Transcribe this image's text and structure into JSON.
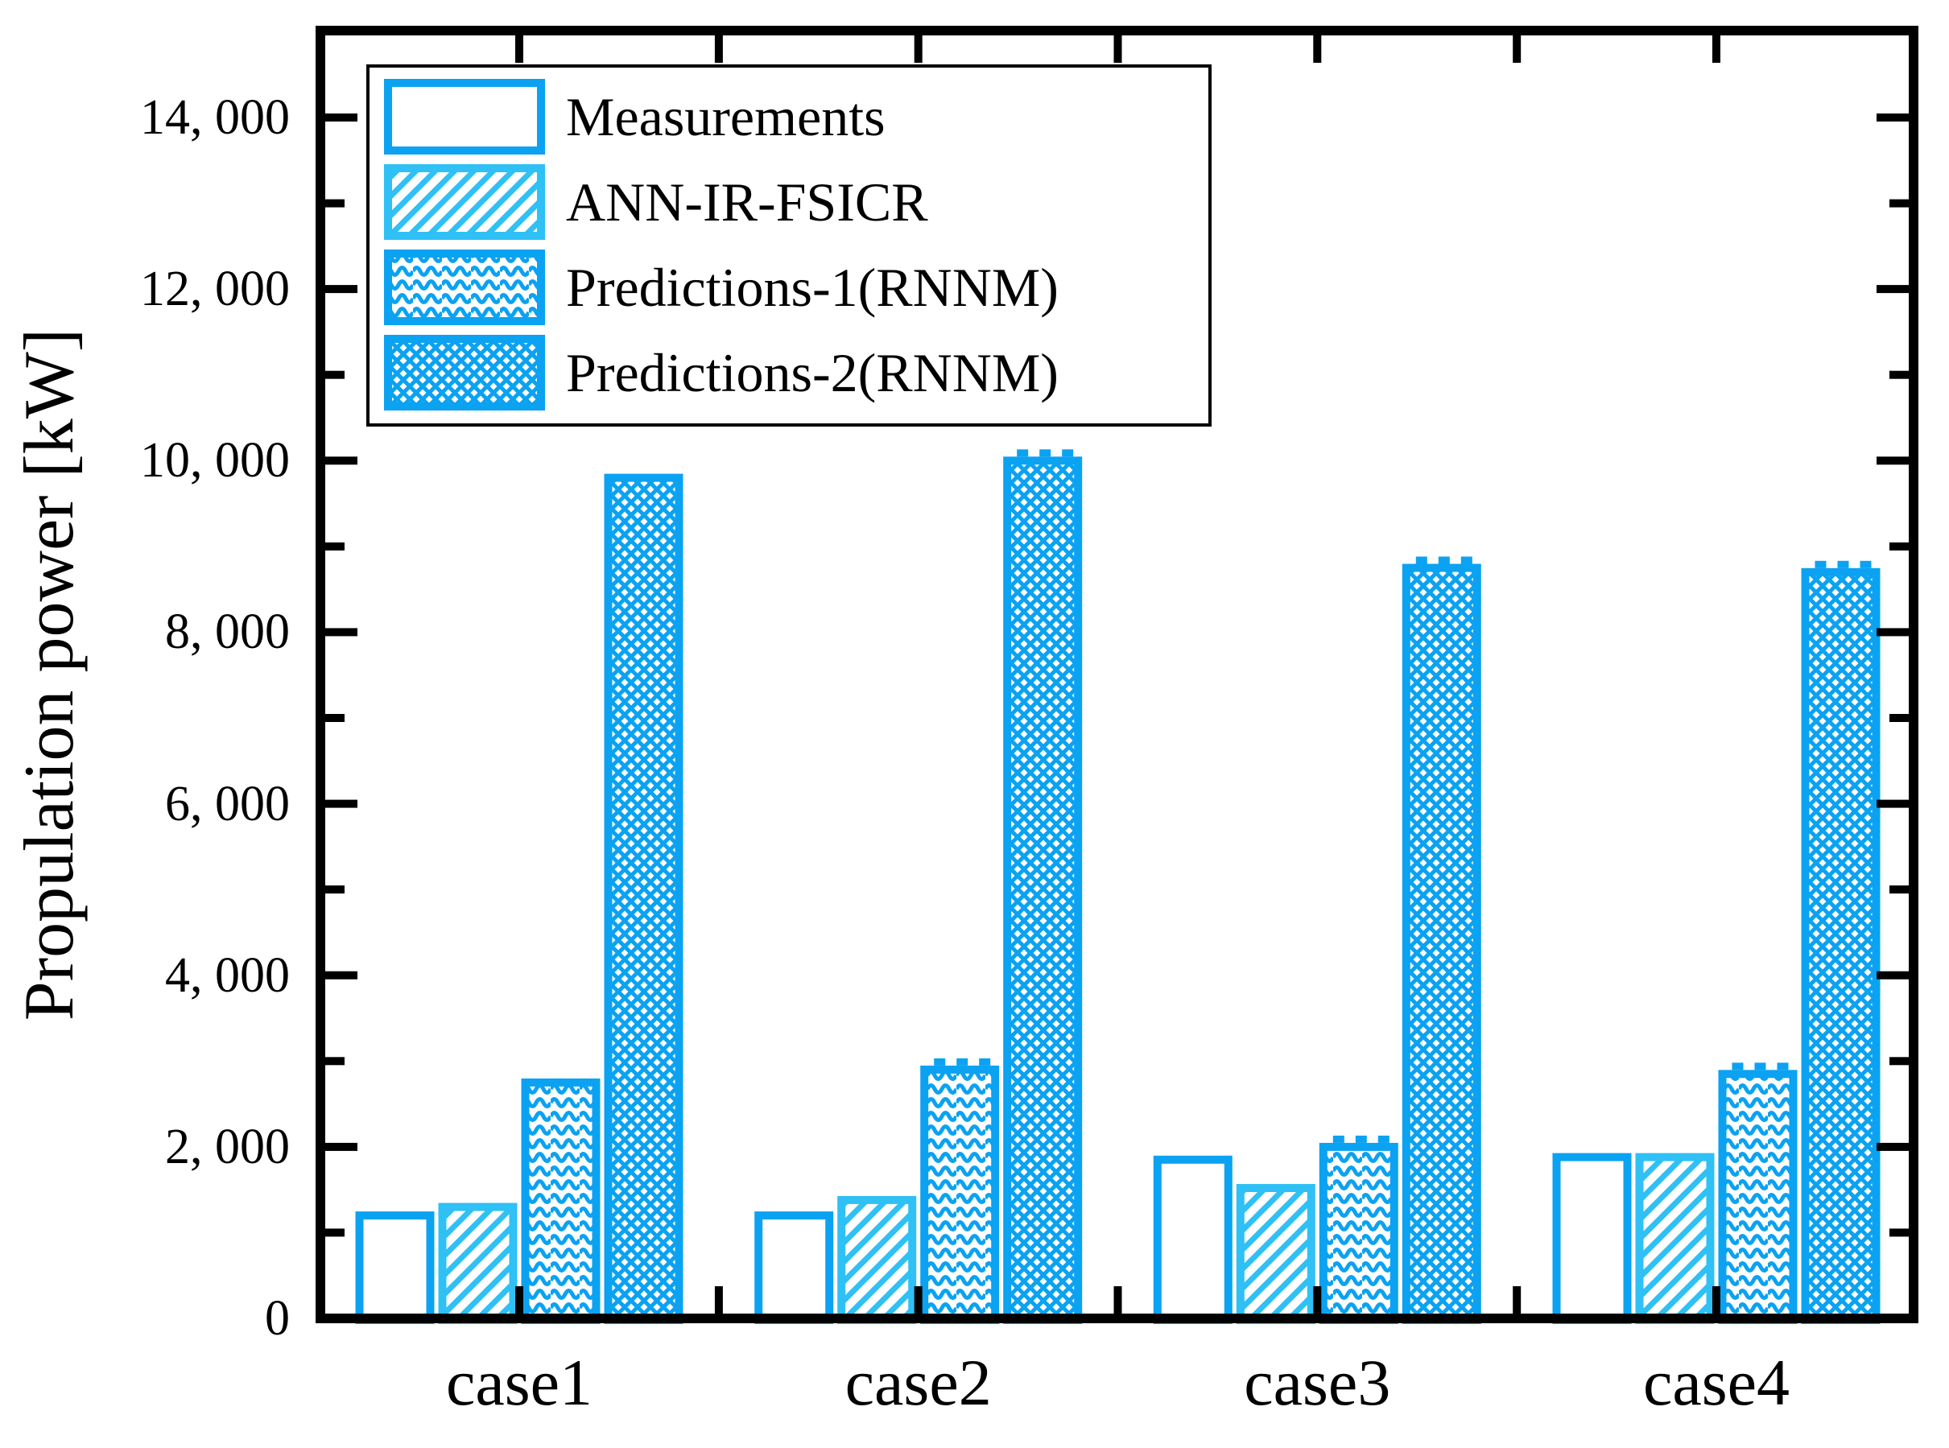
{
  "figure": {
    "background": "#ffffff",
    "colors": {
      "deep_blue": "#0ba2f2",
      "light_blue": "#2fc0f5",
      "axis_black": "#000000"
    }
  },
  "chart_data": {
    "type": "bar",
    "title": "",
    "xlabel": "",
    "ylabel": "Propulation power [kW]",
    "categories": [
      "case1",
      "case2",
      "case3",
      "case4"
    ],
    "series": [
      {
        "name": "Measurements",
        "pattern": "plain",
        "color": "deep_blue",
        "values": [
          1200,
          1200,
          1850,
          1880
        ],
        "error_caps": [
          false,
          false,
          false,
          false
        ]
      },
      {
        "name": "ANN-IR-FSICR",
        "pattern": "hatch",
        "color": "light_blue",
        "values": [
          1300,
          1380,
          1520,
          1880
        ],
        "error_caps": [
          false,
          false,
          false,
          false
        ]
      },
      {
        "name": "Predictions-1(RNNM)",
        "pattern": "wave",
        "color": "deep_blue",
        "values": [
          2750,
          2900,
          2000,
          2850
        ],
        "error_caps": [
          false,
          true,
          true,
          true
        ]
      },
      {
        "name": "Predictions-2(RNNM)",
        "pattern": "mesh",
        "color": "deep_blue",
        "values": [
          9800,
          10000,
          8750,
          8700
        ],
        "error_caps": [
          false,
          true,
          true,
          true
        ]
      }
    ],
    "ylim": [
      0,
      15000
    ],
    "yticks_major": [
      2000,
      4000,
      6000,
      8000,
      10000,
      12000,
      14000
    ],
    "yticks_minor": [
      1000,
      3000,
      5000,
      7000,
      9000,
      11000,
      13000
    ],
    "ytick_labels": [
      "0",
      "2, 000",
      "4, 000",
      "6, 000",
      "8, 000",
      "10, 000",
      "12, 000",
      "14, 000"
    ],
    "ytick_label_values": [
      0,
      2000,
      4000,
      6000,
      8000,
      10000,
      12000,
      14000
    ],
    "legend_position": "upper-left",
    "grid": false
  }
}
